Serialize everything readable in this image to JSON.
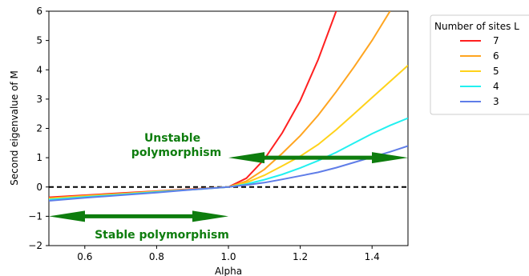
{
  "chart_data": {
    "type": "line",
    "xlabel": "Alpha",
    "ylabel": "Second eigenvalue of M",
    "xlim": [
      0.5,
      1.5
    ],
    "ylim": [
      -2,
      6
    ],
    "xticks": [
      "0.6",
      "0.8",
      "1.0",
      "1.2",
      "1.4"
    ],
    "yticks": [
      "−2",
      "−1",
      "0",
      "1",
      "2",
      "3",
      "4",
      "5",
      "6"
    ],
    "grid": false,
    "legend": {
      "title": "Number of sites L",
      "placement": "outside-right"
    },
    "x": [
      0.5,
      0.6,
      0.7,
      0.8,
      0.9,
      1.0,
      1.05,
      1.1,
      1.15,
      1.2,
      1.25,
      1.3,
      1.35,
      1.4,
      1.45,
      1.5
    ],
    "series": [
      {
        "name": "7",
        "color": "#ff2020",
        "values": [
          -0.35,
          -0.28,
          -0.21,
          -0.14,
          -0.07,
          0.0,
          0.3,
          0.95,
          1.85,
          2.95,
          4.35,
          6.0,
          null,
          null,
          null,
          null
        ]
      },
      {
        "name": "6",
        "color": "#ffa520",
        "values": [
          -0.38,
          -0.3,
          -0.23,
          -0.15,
          -0.08,
          0.0,
          0.2,
          0.6,
          1.15,
          1.75,
          2.45,
          3.25,
          4.1,
          5.0,
          6.0,
          null
        ]
      },
      {
        "name": "5",
        "color": "#ffd21a",
        "values": [
          -0.4,
          -0.32,
          -0.24,
          -0.16,
          -0.08,
          0.0,
          0.15,
          0.4,
          0.72,
          1.05,
          1.45,
          1.95,
          2.5,
          3.05,
          3.6,
          4.15
        ]
      },
      {
        "name": "4",
        "color": "#22f0f0",
        "values": [
          -0.43,
          -0.34,
          -0.26,
          -0.17,
          -0.09,
          0.0,
          0.1,
          0.25,
          0.43,
          0.65,
          0.9,
          1.18,
          1.5,
          1.82,
          2.1,
          2.35
        ]
      },
      {
        "name": "3",
        "color": "#5f7de8",
        "values": [
          -0.47,
          -0.37,
          -0.28,
          -0.19,
          -0.09,
          0.0,
          0.07,
          0.15,
          0.26,
          0.38,
          0.5,
          0.66,
          0.84,
          1.02,
          1.2,
          1.4
        ]
      }
    ],
    "reference_line": {
      "y": 0,
      "style": "dashed",
      "color": "#000000"
    },
    "arrows": [
      {
        "label": "Unstable polymorphism",
        "y": 1.0,
        "x_from": 1.0,
        "x_to": 1.5,
        "color": "#0e7d0e"
      },
      {
        "label": "Stable polymorphism",
        "y": -1.0,
        "x_from": 0.5,
        "x_to": 1.0,
        "color": "#0e7d0e"
      }
    ],
    "annotations": {
      "unstable_line1": "Unstable",
      "unstable_line2": "polymorphism",
      "stable": "Stable polymorphism"
    }
  }
}
